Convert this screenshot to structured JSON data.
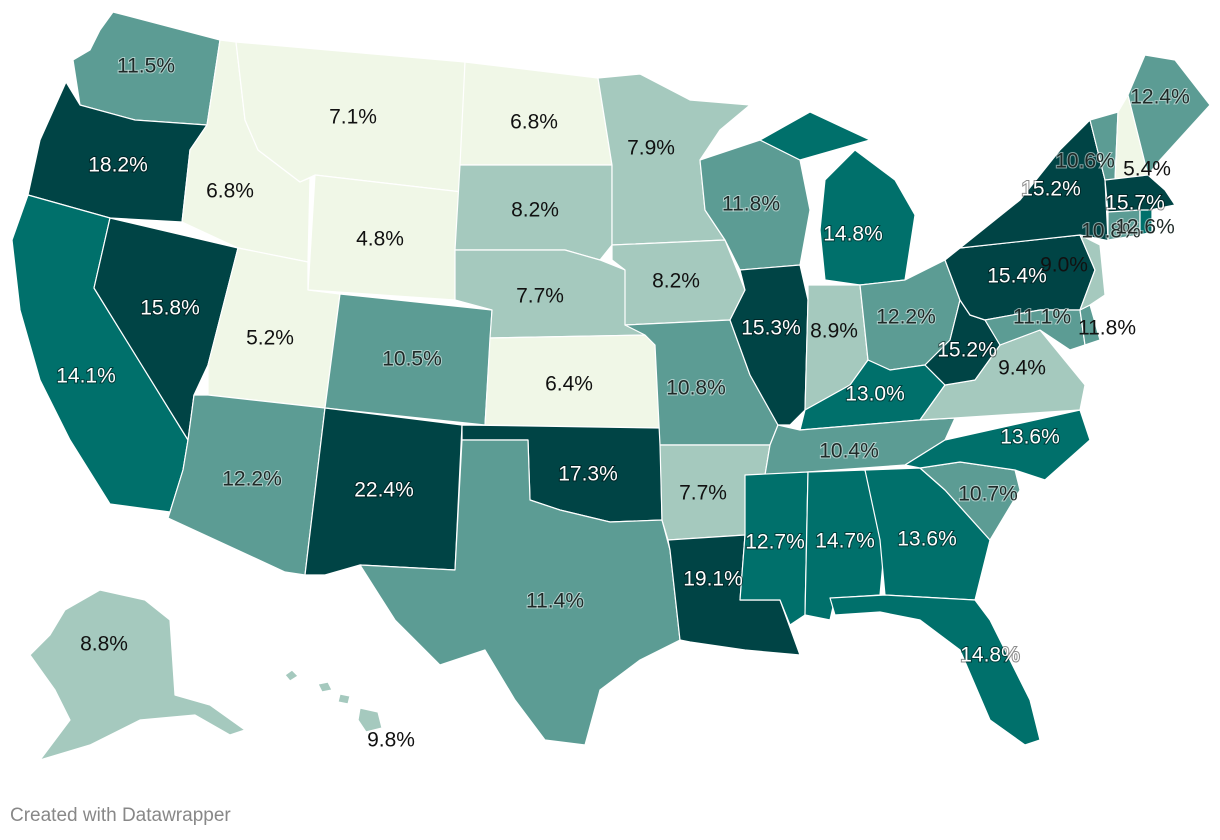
{
  "credit": "Created with Datawrapper",
  "colors": {
    "c1": "#f0f7e7",
    "c2": "#a5c9be",
    "c3": "#5c9c94",
    "c4": "#00706b",
    "c5": "#004445"
  },
  "states": [
    {
      "id": "WA",
      "value": "11.5%",
      "cls": "c3"
    },
    {
      "id": "OR",
      "value": "18.2%",
      "cls": "c5"
    },
    {
      "id": "CA",
      "value": "14.1%",
      "cls": "c4"
    },
    {
      "id": "NV",
      "value": "15.8%",
      "cls": "c5"
    },
    {
      "id": "ID",
      "value": "6.8%",
      "cls": "c1"
    },
    {
      "id": "MT",
      "value": "7.1%",
      "cls": "c1"
    },
    {
      "id": "WY",
      "value": "4.8%",
      "cls": "c1"
    },
    {
      "id": "UT",
      "value": "5.2%",
      "cls": "c1"
    },
    {
      "id": "AZ",
      "value": "12.2%",
      "cls": "c3"
    },
    {
      "id": "CO",
      "value": "10.5%",
      "cls": "c3"
    },
    {
      "id": "NM",
      "value": "22.4%",
      "cls": "c5"
    },
    {
      "id": "ND",
      "value": "6.8%",
      "cls": "c1"
    },
    {
      "id": "SD",
      "value": "8.2%",
      "cls": "c2"
    },
    {
      "id": "NE",
      "value": "7.7%",
      "cls": "c2"
    },
    {
      "id": "KS",
      "value": "6.4%",
      "cls": "c1"
    },
    {
      "id": "OK",
      "value": "17.3%",
      "cls": "c5"
    },
    {
      "id": "TX",
      "value": "11.4%",
      "cls": "c3"
    },
    {
      "id": "MN",
      "value": "7.9%",
      "cls": "c2"
    },
    {
      "id": "IA",
      "value": "8.2%",
      "cls": "c2"
    },
    {
      "id": "MO",
      "value": "10.8%",
      "cls": "c3"
    },
    {
      "id": "AR",
      "value": "7.7%",
      "cls": "c2"
    },
    {
      "id": "LA",
      "value": "19.1%",
      "cls": "c5"
    },
    {
      "id": "WI",
      "value": "11.8%",
      "cls": "c3"
    },
    {
      "id": "IL",
      "value": "15.3%",
      "cls": "c5"
    },
    {
      "id": "MI",
      "value": "14.8%",
      "cls": "c4"
    },
    {
      "id": "IN",
      "value": "8.9%",
      "cls": "c2"
    },
    {
      "id": "OH",
      "value": "12.2%",
      "cls": "c3"
    },
    {
      "id": "KY",
      "value": "13.0%",
      "cls": "c4"
    },
    {
      "id": "TN",
      "value": "10.4%",
      "cls": "c3"
    },
    {
      "id": "MS",
      "value": "12.7%",
      "cls": "c4"
    },
    {
      "id": "AL",
      "value": "14.7%",
      "cls": "c4"
    },
    {
      "id": "GA",
      "value": "13.6%",
      "cls": "c4"
    },
    {
      "id": "FL",
      "value": "14.8%",
      "cls": "c4"
    },
    {
      "id": "SC",
      "value": "10.7%",
      "cls": "c3"
    },
    {
      "id": "NC",
      "value": "13.6%",
      "cls": "c4"
    },
    {
      "id": "VA",
      "value": "9.4%",
      "cls": "c2"
    },
    {
      "id": "WV",
      "value": "15.2%",
      "cls": "c5"
    },
    {
      "id": "PA",
      "value": "15.4%",
      "cls": "c5"
    },
    {
      "id": "NY",
      "value": "15.2%",
      "cls": "c5"
    },
    {
      "id": "MD",
      "value": "11.1%",
      "cls": "c3"
    },
    {
      "id": "DE",
      "value": "11.8%",
      "cls": "c3"
    },
    {
      "id": "NJ",
      "value": "9.0%",
      "cls": "c2"
    },
    {
      "id": "VT",
      "value": "10.6%",
      "cls": "c3"
    },
    {
      "id": "NH",
      "value": "5.4%",
      "cls": "c1"
    },
    {
      "id": "MA",
      "value": "15.7%",
      "cls": "c5"
    },
    {
      "id": "CT",
      "value": "10.8%",
      "cls": "c3"
    },
    {
      "id": "RI",
      "value": "12.6%",
      "cls": "c4"
    },
    {
      "id": "ME",
      "value": "12.4%",
      "cls": "c3"
    },
    {
      "id": "AK",
      "value": "8.8%",
      "cls": "c2"
    },
    {
      "id": "HI",
      "value": "9.8%",
      "cls": "c2"
    }
  ]
}
